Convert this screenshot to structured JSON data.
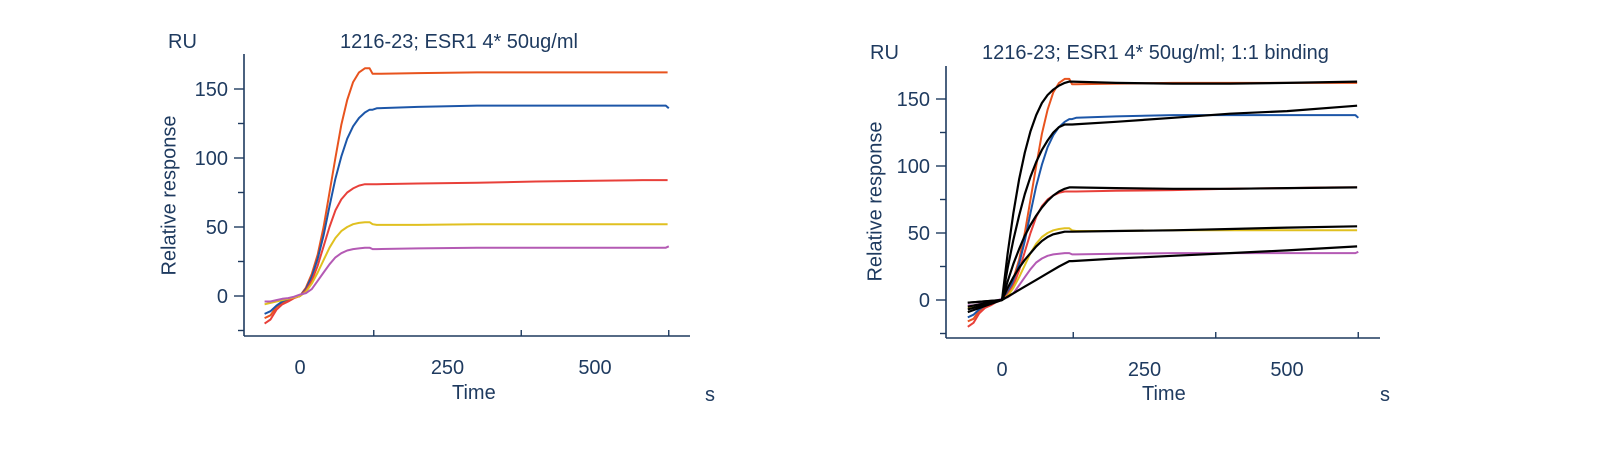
{
  "chart_data": [
    {
      "type": "line",
      "title": "1216-23; ESR1 4*  50ug/ml",
      "ylabel": "Relative response",
      "yunit": "RU",
      "xlabel": "Time",
      "xunit": "s",
      "xlim": [
        -100,
        690
      ],
      "ylim": [
        -30,
        170
      ],
      "xticks": [
        0,
        250,
        500
      ],
      "yticks": [
        0,
        50,
        100,
        150
      ],
      "grid": false,
      "series": [
        {
          "color": "#e8531e",
          "x": [
            -60,
            -50,
            -40,
            -30,
            -20,
            -10,
            0,
            10,
            20,
            30,
            40,
            50,
            60,
            70,
            80,
            90,
            100,
            110,
            118,
            123,
            130,
            200,
            300,
            400,
            500,
            580,
            623
          ],
          "y": [
            -16,
            -14,
            -8,
            -5,
            -3,
            -1,
            0,
            6,
            16,
            30,
            50,
            75,
            100,
            124,
            142,
            155,
            162,
            165,
            165,
            161,
            161,
            161.5,
            162,
            162,
            162,
            162,
            162
          ]
        },
        {
          "color": "#1c56a8",
          "x": [
            -60,
            -50,
            -40,
            -30,
            -20,
            -10,
            0,
            10,
            20,
            30,
            40,
            50,
            60,
            70,
            80,
            90,
            100,
            110,
            118,
            123,
            130,
            200,
            300,
            400,
            500,
            580,
            620,
            625
          ],
          "y": [
            -13,
            -11,
            -7,
            -4,
            -2,
            -1,
            0,
            5,
            14,
            27,
            44,
            65,
            85,
            101,
            114,
            123,
            129,
            133,
            135,
            135,
            136,
            137,
            138,
            138,
            138,
            138,
            138,
            136
          ]
        },
        {
          "color": "#e8403a",
          "x": [
            -60,
            -50,
            -40,
            -30,
            -20,
            -10,
            0,
            10,
            20,
            30,
            40,
            50,
            60,
            70,
            80,
            90,
            100,
            110,
            118,
            123,
            130,
            200,
            300,
            400,
            500,
            580,
            623
          ],
          "y": [
            -20,
            -17,
            -10,
            -6,
            -4,
            -1.5,
            0,
            4,
            11,
            22,
            36,
            50,
            62,
            70,
            75,
            78,
            80,
            81,
            81,
            81,
            81,
            81.5,
            82,
            83,
            83.5,
            84,
            84
          ]
        },
        {
          "color": "#e0c020",
          "x": [
            -60,
            -50,
            -40,
            -30,
            -20,
            -10,
            0,
            10,
            20,
            30,
            40,
            50,
            60,
            70,
            80,
            90,
            100,
            110,
            118,
            123,
            130,
            200,
            300,
            400,
            500,
            580,
            623
          ],
          "y": [
            -6,
            -5,
            -4,
            -3,
            -2,
            -1,
            0,
            3,
            9,
            17,
            26,
            35,
            42,
            47,
            50,
            52,
            53,
            53.5,
            53.5,
            52,
            51.5,
            51.5,
            52,
            52,
            52,
            52,
            52
          ]
        },
        {
          "color": "#b45ab4",
          "x": [
            -60,
            -50,
            -40,
            -30,
            -20,
            -10,
            0,
            10,
            20,
            30,
            40,
            50,
            60,
            70,
            80,
            90,
            100,
            110,
            118,
            123,
            130,
            200,
            300,
            400,
            500,
            580,
            620,
            625
          ],
          "y": [
            -4,
            -4,
            -3,
            -2,
            -1.5,
            -0.5,
            1,
            2,
            5,
            11,
            17,
            23,
            28,
            31,
            33,
            34,
            34.5,
            35,
            35,
            34,
            34,
            34.5,
            35,
            35,
            35,
            35,
            35,
            36
          ]
        }
      ]
    },
    {
      "type": "line",
      "title": "1216-23; ESR1 4*  50ug/ml; 1:1 binding",
      "ylabel": "Relative response",
      "yunit": "RU",
      "xlabel": "Time",
      "xunit": "s",
      "xlim": [
        -100,
        690
      ],
      "ylim": [
        -30,
        170
      ],
      "xticks": [
        0,
        250,
        500
      ],
      "yticks": [
        0,
        50,
        100,
        150
      ],
      "grid": false,
      "series": [
        {
          "color": "#e8531e",
          "x": [
            -60,
            -50,
            -40,
            -30,
            -20,
            -10,
            0,
            10,
            20,
            30,
            40,
            50,
            60,
            70,
            80,
            90,
            100,
            110,
            118,
            123,
            130,
            200,
            300,
            400,
            500,
            580,
            623
          ],
          "y": [
            -16,
            -14,
            -8,
            -5,
            -3,
            -1,
            0,
            6,
            16,
            30,
            50,
            75,
            100,
            124,
            142,
            155,
            162,
            165,
            165,
            161,
            161,
            161.5,
            162,
            162,
            162,
            162,
            162
          ]
        },
        {
          "color": "#1c56a8",
          "x": [
            -60,
            -50,
            -40,
            -30,
            -20,
            -10,
            0,
            10,
            20,
            30,
            40,
            50,
            60,
            70,
            80,
            90,
            100,
            110,
            118,
            123,
            130,
            200,
            300,
            400,
            500,
            580,
            620,
            625
          ],
          "y": [
            -13,
            -11,
            -7,
            -4,
            -2,
            -1,
            0,
            5,
            14,
            27,
            44,
            65,
            85,
            101,
            114,
            123,
            129,
            133,
            135,
            135,
            136,
            137,
            138,
            138,
            138,
            138,
            138,
            136
          ]
        },
        {
          "color": "#e8403a",
          "x": [
            -60,
            -50,
            -40,
            -30,
            -20,
            -10,
            0,
            10,
            20,
            30,
            40,
            50,
            60,
            70,
            80,
            90,
            100,
            110,
            118,
            123,
            130,
            200,
            300,
            400,
            500,
            580,
            623
          ],
          "y": [
            -20,
            -17,
            -10,
            -6,
            -4,
            -1.5,
            0,
            4,
            11,
            22,
            36,
            50,
            62,
            70,
            75,
            78,
            80,
            81,
            81,
            81,
            81,
            81.5,
            82,
            83,
            83.5,
            84,
            84
          ]
        },
        {
          "color": "#e0c020",
          "x": [
            -60,
            -50,
            -40,
            -30,
            -20,
            -10,
            0,
            10,
            20,
            30,
            40,
            50,
            60,
            70,
            80,
            90,
            100,
            110,
            118,
            123,
            130,
            200,
            300,
            400,
            500,
            580,
            623
          ],
          "y": [
            -6,
            -5,
            -4,
            -3,
            -2,
            -1,
            0,
            3,
            9,
            17,
            26,
            35,
            42,
            47,
            50,
            52,
            53,
            53.5,
            53.5,
            52,
            51.5,
            51.5,
            52,
            52,
            52,
            52,
            52
          ]
        },
        {
          "color": "#b45ab4",
          "x": [
            -60,
            -50,
            -40,
            -30,
            -20,
            -10,
            0,
            10,
            20,
            30,
            40,
            50,
            60,
            70,
            80,
            90,
            100,
            110,
            118,
            123,
            130,
            200,
            300,
            400,
            500,
            580,
            620,
            625
          ],
          "y": [
            -4,
            -4,
            -3,
            -2,
            -1.5,
            -0.5,
            1,
            2,
            5,
            11,
            17,
            23,
            28,
            31,
            33,
            34,
            34.5,
            35,
            35,
            34,
            34,
            34.5,
            35,
            35,
            35,
            35,
            35,
            36
          ]
        },
        {
          "color": "#000000",
          "x": [
            -60,
            0,
            10,
            20,
            30,
            40,
            50,
            60,
            70,
            80,
            90,
            100,
            110,
            118,
            123,
            200,
            300,
            400,
            500,
            623
          ],
          "y": [
            -2,
            0,
            35,
            65,
            90,
            110,
            126,
            138,
            147,
            153,
            157,
            160,
            162,
            163,
            163,
            162,
            161.5,
            161.5,
            162,
            163
          ]
        },
        {
          "color": "#000000",
          "x": [
            -60,
            0,
            10,
            20,
            30,
            40,
            50,
            60,
            70,
            80,
            90,
            100,
            110,
            118,
            123,
            200,
            300,
            400,
            500,
            623
          ],
          "y": [
            -2,
            0,
            24,
            45,
            63,
            79,
            92,
            103,
            112,
            119,
            125,
            129,
            131,
            131,
            131,
            133,
            136,
            139,
            141,
            145
          ]
        },
        {
          "color": "#000000",
          "x": [
            -60,
            0,
            10,
            20,
            30,
            40,
            50,
            60,
            70,
            80,
            90,
            100,
            110,
            118,
            123,
            200,
            300,
            400,
            500,
            623
          ],
          "y": [
            -5,
            0,
            14,
            27,
            38,
            48,
            56,
            63,
            69,
            74,
            78,
            81,
            83,
            84,
            84,
            83.5,
            83,
            83,
            83.5,
            84
          ]
        },
        {
          "color": "#000000",
          "x": [
            -60,
            0,
            10,
            20,
            30,
            40,
            50,
            60,
            70,
            80,
            90,
            100,
            110,
            118,
            123,
            200,
            300,
            400,
            500,
            623
          ],
          "y": [
            -7,
            0,
            9,
            17,
            24,
            30,
            35,
            40,
            44,
            47,
            49,
            50,
            51,
            51,
            51,
            51.5,
            52,
            53,
            54,
            55
          ]
        },
        {
          "color": "#000000",
          "x": [
            -60,
            0,
            20,
            40,
            60,
            80,
            100,
            118,
            123,
            200,
            300,
            400,
            500,
            623
          ],
          "y": [
            -9,
            0,
            5,
            10,
            15,
            20,
            25,
            29,
            29,
            31,
            33,
            35,
            37,
            40
          ]
        }
      ]
    }
  ]
}
